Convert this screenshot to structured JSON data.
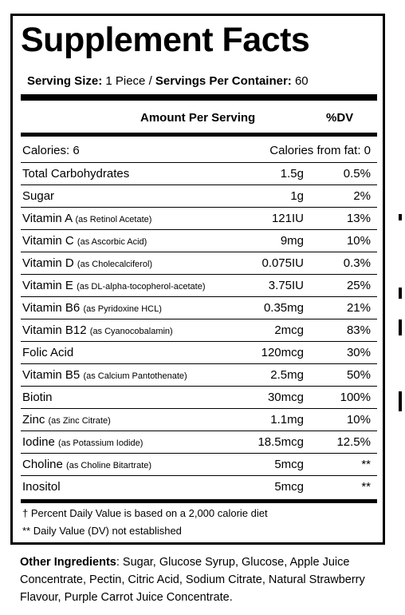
{
  "title": "Supplement Facts",
  "serving": {
    "size_label": "Serving Size:",
    "size_value": " 1 Piece / ",
    "servings_label": "Servings Per Container:",
    "servings_value": " 60"
  },
  "header": {
    "amount_label": "Amount Per Serving",
    "dv_label": "%DV"
  },
  "calories": {
    "label": "Calories: 6",
    "from_fat": "Calories from fat: 0"
  },
  "nutrients": [
    {
      "name": "Total Carbohydrates",
      "sub": "",
      "amount": "1.5g",
      "dv": "0.5%"
    },
    {
      "name": "Sugar",
      "sub": "",
      "amount": "1g",
      "dv": "2%"
    },
    {
      "name": "Vitamin A",
      "sub": "(as Retinol Acetate)",
      "amount": "121IU",
      "dv": "13%"
    },
    {
      "name": "Vitamin C",
      "sub": "(as Ascorbic Acid)",
      "amount": "9mg",
      "dv": "10%"
    },
    {
      "name": "Vitamin D",
      "sub": "(as Cholecalciferol)",
      "amount": "0.075IU",
      "dv": "0.3%"
    },
    {
      "name": "Vitamin E",
      "sub": "(as DL-alpha-tocopherol-acetate)",
      "amount": "3.75IU",
      "dv": "25%"
    },
    {
      "name": "Vitamin B6",
      "sub": "(as Pyridoxine HCL)",
      "amount": "0.35mg",
      "dv": "21%"
    },
    {
      "name": "Vitamin B12",
      "sub": "(as Cyanocobalamin)",
      "amount": "2mcg",
      "dv": "83%"
    },
    {
      "name": "Folic Acid",
      "sub": "",
      "amount": "120mcg",
      "dv": "30%"
    },
    {
      "name": "Vitamin B5",
      "sub": "(as Calcium Pantothenate)",
      "amount": "2.5mg",
      "dv": "50%"
    },
    {
      "name": "Biotin",
      "sub": "",
      "amount": "30mcg",
      "dv": "100%"
    },
    {
      "name": "Zinc",
      "sub": "(as Zinc Citrate)",
      "amount": "1.1mg",
      "dv": "10%"
    },
    {
      "name": "Iodine",
      "sub": "(as Potassium Iodide)",
      "amount": "18.5mcg",
      "dv": "12.5%"
    },
    {
      "name": "Choline",
      "sub": "(as Choline Bitartrate)",
      "amount": "5mcg",
      "dv": "**"
    },
    {
      "name": "Inositol",
      "sub": "",
      "amount": "5mcg",
      "dv": "**"
    }
  ],
  "footnotes": {
    "percent_dv": "† Percent Daily Value is based on a 2,000 calorie diet",
    "not_established": "** Daily Value (DV) not established"
  },
  "other_ingredients": {
    "label": "Other Ingredients",
    "text": ": Sugar, Glucose Syrup, Glucose, Apple Juice Concentrate, Pectin, Citric Acid, Sodium Citrate, Natural Strawberry Flavour, Purple Carrot Juice Concentrate."
  }
}
